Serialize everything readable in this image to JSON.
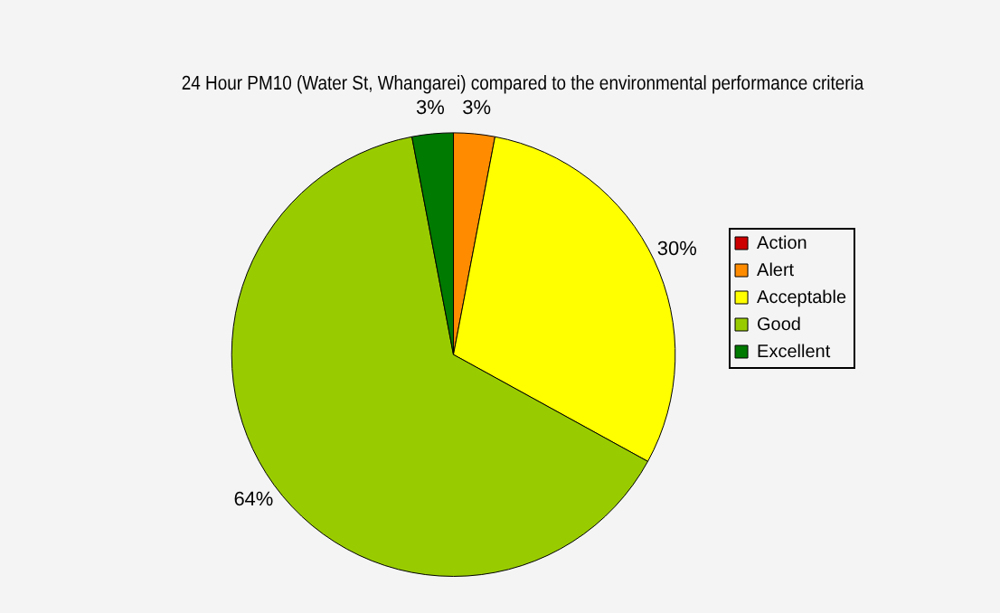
{
  "chart_data": {
    "type": "pie",
    "title": "24 Hour PM10 (Water St, Whangarei) compared to the environmental performance criteria",
    "categories": [
      "Action",
      "Alert",
      "Acceptable",
      "Good",
      "Excellent"
    ],
    "values": [
      0,
      3,
      30,
      64,
      3
    ],
    "colors": [
      "#cc0000",
      "#ff8c00",
      "#ffff00",
      "#99cc00",
      "#007a00"
    ],
    "value_labels": [
      null,
      "3%",
      "30%",
      "64%",
      "3%"
    ],
    "legend": "right"
  }
}
